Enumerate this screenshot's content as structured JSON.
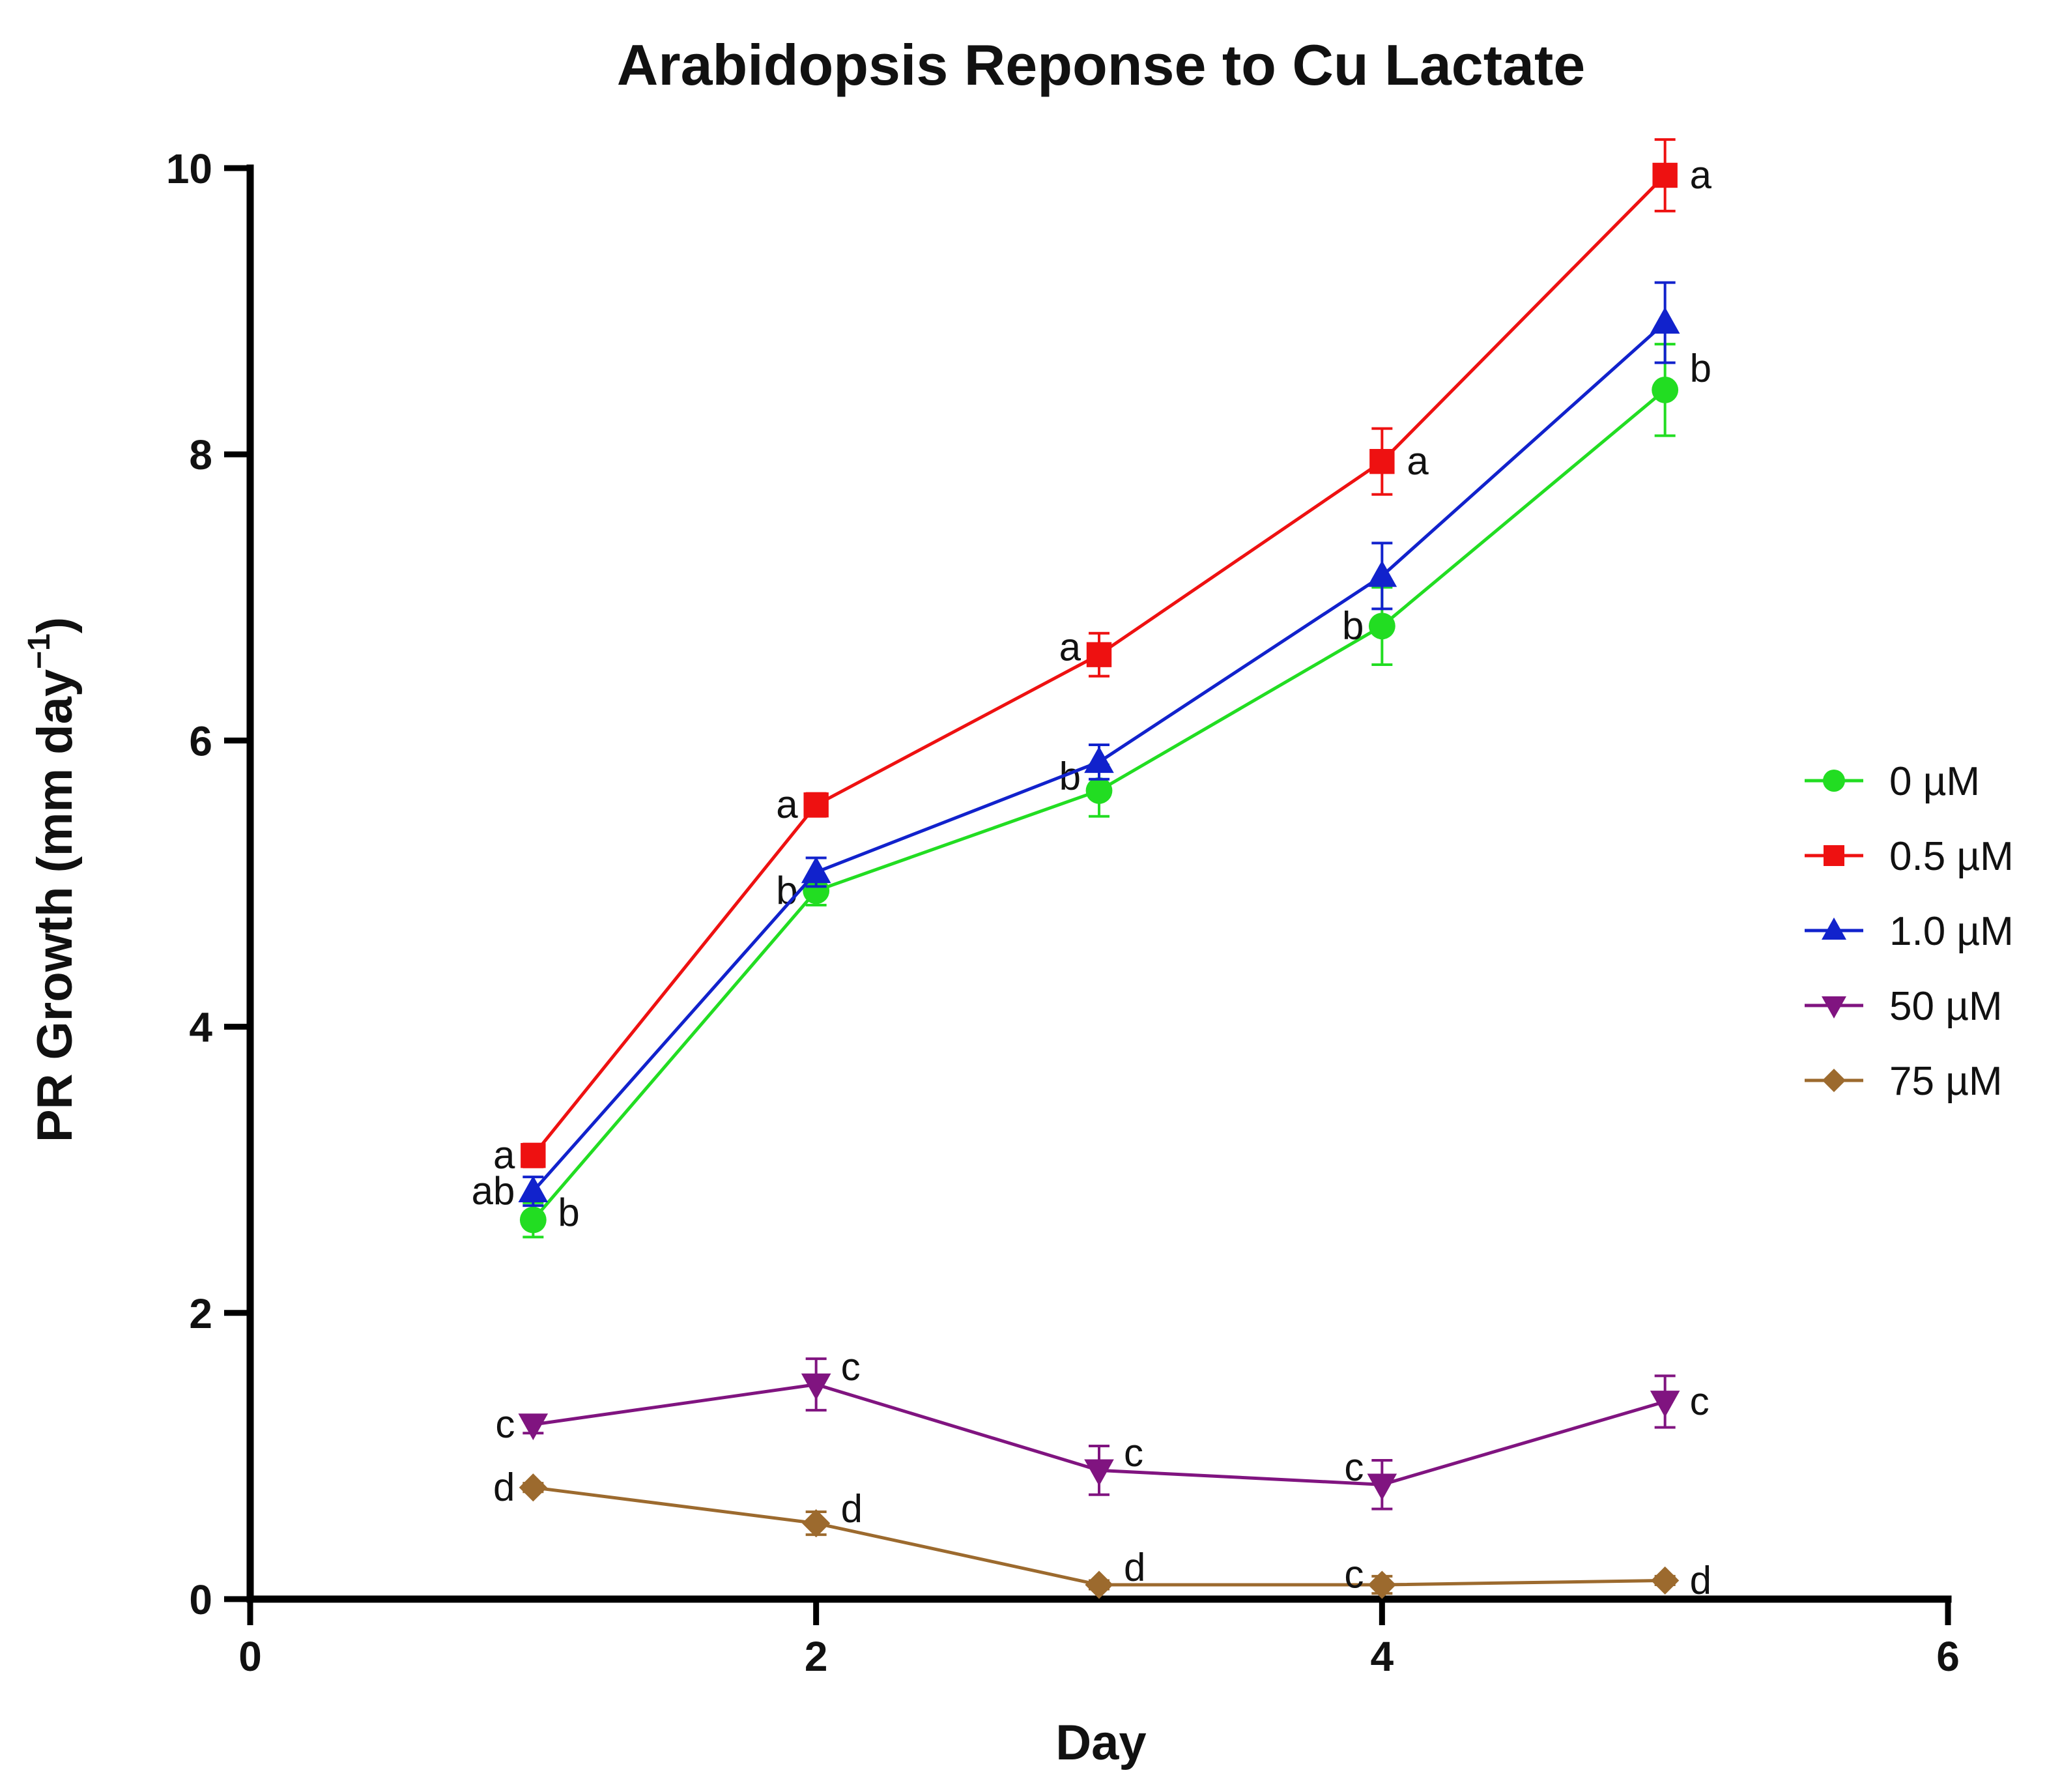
{
  "chart_data": {
    "type": "line",
    "title": "Arabidopsis Reponse to Cu Lactate",
    "xlabel": "Day",
    "ylabel_main": "PR Growth (mm day",
    "ylabel_sup": "−1",
    "ylabel_close": ")",
    "xlim": [
      0,
      6
    ],
    "ylim": [
      0,
      10
    ],
    "xticks": [
      0,
      2,
      4,
      6
    ],
    "yticks": [
      0,
      2,
      4,
      6,
      8,
      10
    ],
    "xtick_labels": [
      "0",
      "2",
      "4",
      "6"
    ],
    "ytick_labels": [
      "0",
      "2",
      "4",
      "6",
      "8",
      "10"
    ],
    "grid": false,
    "legend_position": "right",
    "x": [
      1,
      2,
      3,
      4,
      5
    ],
    "series": [
      {
        "name": "0 µM",
        "color": "#22dd22",
        "marker": "circle",
        "values": [
          2.65,
          4.95,
          5.65,
          6.8,
          8.45
        ],
        "errors": [
          0.12,
          0.1,
          0.18,
          0.27,
          0.32
        ],
        "letters": [
          {
            "text": "b",
            "side": "right",
            "dy": 0.05
          },
          {
            "text": "b",
            "side": "left",
            "dy": 0.0
          },
          {
            "text": "b",
            "side": "left",
            "dy": 0.1
          },
          {
            "text": "b",
            "side": "left",
            "dy": 0.0
          },
          {
            "text": "b",
            "side": "right",
            "dy": 0.15
          }
        ]
      },
      {
        "name": "0.5 µM",
        "color": "#ee1111",
        "marker": "square",
        "values": [
          3.1,
          5.55,
          6.6,
          7.95,
          9.95
        ],
        "errors": [
          0.08,
          0.08,
          0.15,
          0.23,
          0.25
        ],
        "letters": [
          {
            "text": "a",
            "side": "left",
            "dy": 0.0
          },
          {
            "text": "a",
            "side": "left",
            "dy": 0.0
          },
          {
            "text": "a",
            "side": "left",
            "dy": 0.05
          },
          {
            "text": "a",
            "side": "right",
            "dy": 0.0
          },
          {
            "text": "a",
            "side": "right",
            "dy": 0.0
          }
        ]
      },
      {
        "name": "1.0 µM",
        "color": "#1122cc",
        "marker": "triangle-up",
        "values": [
          2.85,
          5.08,
          5.85,
          7.15,
          8.92
        ],
        "errors": [
          0.1,
          0.1,
          0.12,
          0.23,
          0.28
        ],
        "letters": [
          {
            "text": "ab",
            "side": "left",
            "dy": 0.0
          },
          {
            "text": "",
            "side": "left",
            "dy": 0.0
          },
          {
            "text": "",
            "side": "left",
            "dy": 0.0
          },
          {
            "text": "",
            "side": "left",
            "dy": 0.0
          },
          {
            "text": "",
            "side": "left",
            "dy": 0.0
          }
        ]
      },
      {
        "name": "50 µM",
        "color": "#801480",
        "marker": "triangle-down",
        "values": [
          1.22,
          1.5,
          0.9,
          0.8,
          1.38
        ],
        "errors": [
          0.06,
          0.18,
          0.17,
          0.17,
          0.18
        ],
        "letters": [
          {
            "text": "c",
            "side": "left",
            "dy": 0.0
          },
          {
            "text": "c",
            "side": "right",
            "dy": 0.12
          },
          {
            "text": "c",
            "side": "right",
            "dy": 0.12
          },
          {
            "text": "c",
            "side": "left",
            "dy": 0.12
          },
          {
            "text": "c",
            "side": "right",
            "dy": 0.0
          }
        ]
      },
      {
        "name": "75 µM",
        "color": "#9c6a2e",
        "marker": "diamond",
        "values": [
          0.78,
          0.53,
          0.1,
          0.1,
          0.13
        ],
        "errors": [
          0.03,
          0.08,
          0.03,
          0.06,
          0.03
        ],
        "letters": [
          {
            "text": "d",
            "side": "left",
            "dy": 0.0
          },
          {
            "text": "d",
            "side": "right",
            "dy": 0.1
          },
          {
            "text": "d",
            "side": "right",
            "dy": 0.12
          },
          {
            "text": "c",
            "side": "left",
            "dy": 0.07
          },
          {
            "text": "d",
            "side": "right",
            "dy": 0.0
          }
        ]
      }
    ]
  }
}
